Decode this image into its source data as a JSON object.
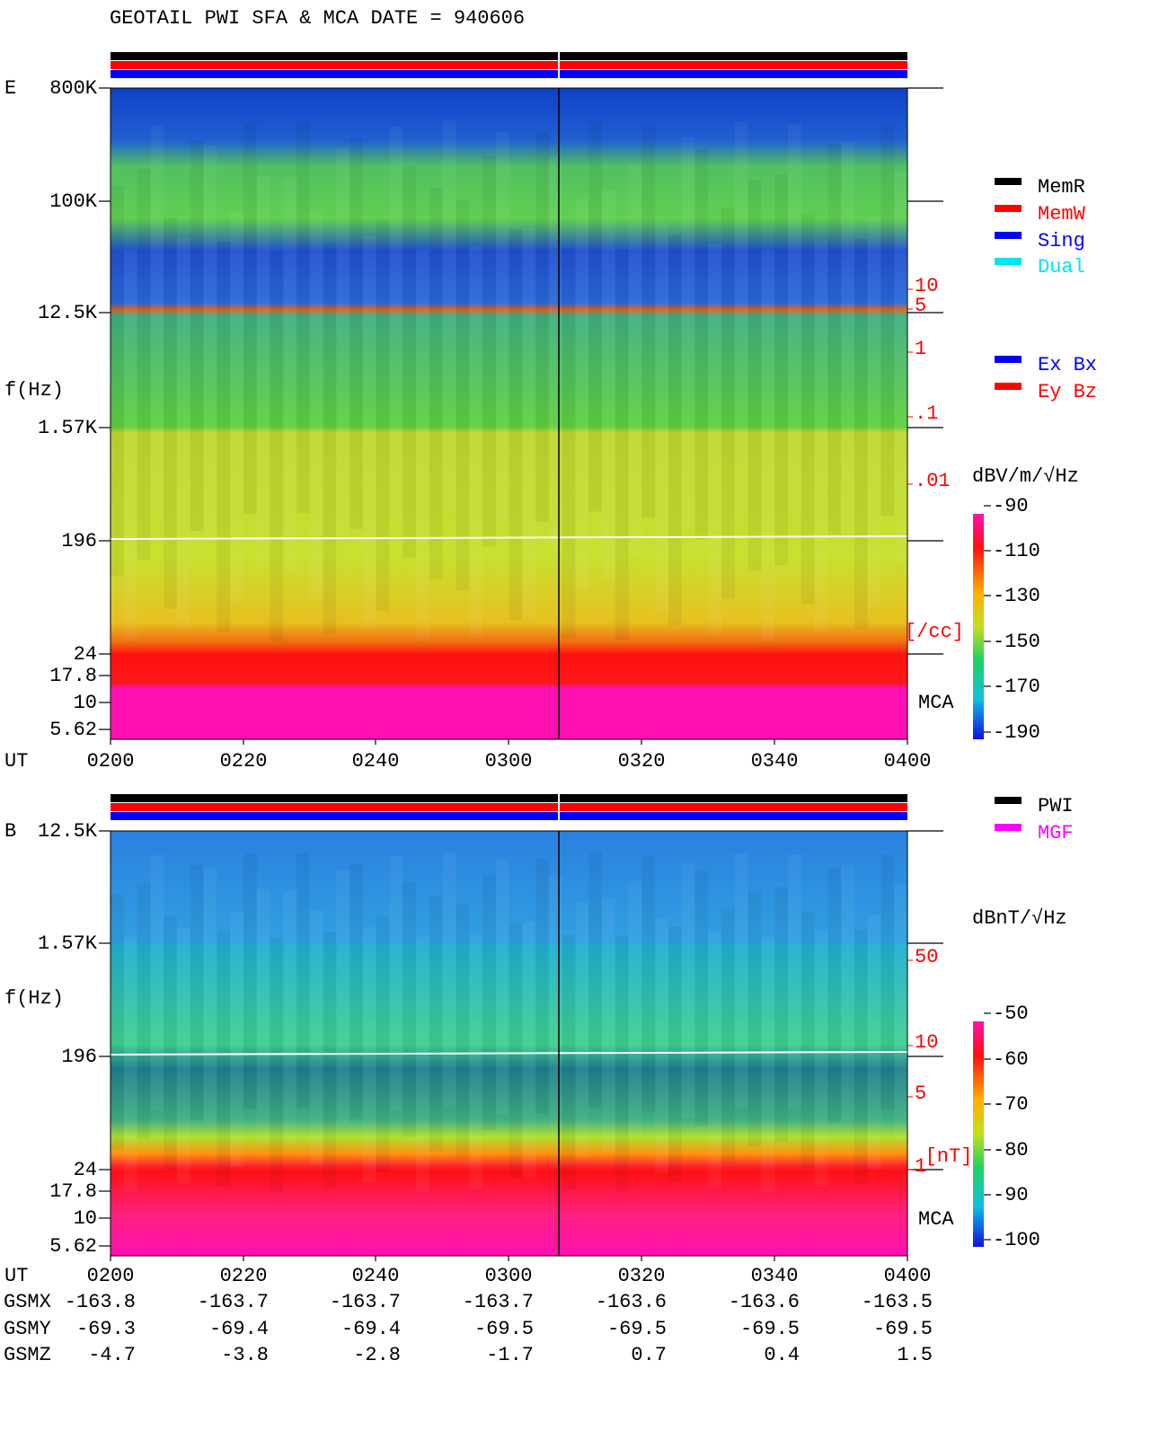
{
  "title": "GEOTAIL  PWI SFA & MCA   DATE = 940606",
  "panels": [
    {
      "label": "E",
      "y_axis_label": "f(Hz)",
      "y_ticks": [
        "800K",
        "100K",
        "12.5K",
        "1.57K",
        "196",
        "24",
        "17.8",
        "10",
        "5.62"
      ],
      "mca_label": "MCA",
      "x_axis_label": "UT",
      "x_ticks": [
        "0200",
        "0220",
        "0240",
        "0300",
        "0320",
        "0340",
        "0400"
      ],
      "right_ticks": [
        "10",
        "5",
        "1",
        ".1",
        ".01"
      ],
      "right_unit": "[/cc]",
      "colorbar_unit": "dBV/m/√Hz",
      "colorbar_ticks": [
        "-90",
        "-110",
        "-130",
        "-150",
        "-170",
        "-190"
      ],
      "legend": [
        {
          "name": "MemR",
          "color": "#000000"
        },
        {
          "name": "MemW",
          "color": "#ff0000"
        },
        {
          "name": "Sing",
          "color": "#0000ff"
        },
        {
          "name": "Dual",
          "color": "#00e5f0"
        }
      ],
      "legend2": [
        {
          "name": "Ex Bx",
          "color": "#0000ff"
        },
        {
          "name": "Ey Bz",
          "color": "#ff0000"
        }
      ]
    },
    {
      "label": "B",
      "y_axis_label": "f(Hz)",
      "y_ticks": [
        "12.5K",
        "1.57K",
        "196",
        "24",
        "17.8",
        "10",
        "5.62"
      ],
      "mca_label": "MCA",
      "x_axis_label": "UT",
      "x_ticks": [
        "0200",
        "0220",
        "0240",
        "0300",
        "0320",
        "0340",
        "0400"
      ],
      "right_ticks": [
        "50",
        "10",
        "5",
        "1"
      ],
      "right_unit": "[nT]",
      "colorbar_unit": "dBnT/√Hz",
      "colorbar_ticks": [
        "-50",
        "-60",
        "-70",
        "-80",
        "-90",
        "-100"
      ],
      "legend": [
        {
          "name": "PWI",
          "color": "#000000"
        },
        {
          "name": "MGF",
          "color": "#ff00ff"
        }
      ]
    }
  ],
  "orbit": [
    {
      "label": "GSMX",
      "values": [
        "-163.8",
        "-163.7",
        "-163.7",
        "-163.7",
        "-163.6",
        "-163.6",
        "-163.5"
      ]
    },
    {
      "label": "GSMY",
      "values": [
        "-69.3",
        "-69.4",
        "-69.4",
        "-69.5",
        "-69.5",
        "-69.5",
        "-69.5"
      ]
    },
    {
      "label": "GSMZ",
      "values": [
        "-4.7",
        "-3.8",
        "-2.8",
        "-1.7",
        "0.7",
        "0.4",
        "1.5"
      ]
    }
  ]
}
